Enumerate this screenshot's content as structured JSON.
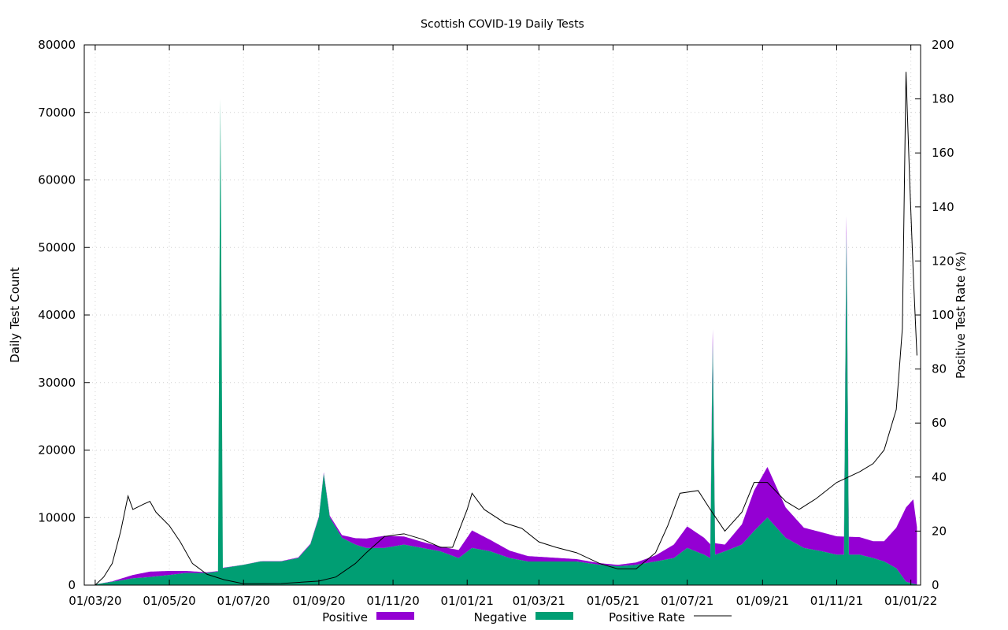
{
  "chart_data": {
    "type": "area",
    "title": "Scottish COVID-19 Daily Tests",
    "ylabel": "Daily Test Count",
    "y2label": "Positive Test Rate (%)",
    "xlabel": "",
    "x_ticks": [
      "01/03/20",
      "01/05/20",
      "01/07/20",
      "01/09/20",
      "01/11/20",
      "01/01/21",
      "01/03/21",
      "01/05/21",
      "01/07/21",
      "01/09/21",
      "01/11/21",
      "01/01/22"
    ],
    "x_range": [
      "2020-02-21",
      "2022-01-09"
    ],
    "ylim": [
      0,
      80000
    ],
    "y_ticks": [
      0,
      10000,
      20000,
      30000,
      40000,
      50000,
      60000,
      70000,
      80000
    ],
    "y2lim": [
      0,
      200
    ],
    "y2_ticks": [
      0,
      20,
      40,
      60,
      80,
      100,
      120,
      140,
      160,
      180,
      200
    ],
    "grid": true,
    "legend_position": "bottom",
    "colors": {
      "positive": "#9400d3",
      "negative": "#009e73",
      "rate": "#000000"
    },
    "series": [
      {
        "name": "Positive",
        "style": "stacked-area",
        "points": [
          [
            "2020-03-01",
            0
          ],
          [
            "2020-03-15",
            60
          ],
          [
            "2020-04-01",
            500
          ],
          [
            "2020-04-15",
            800
          ],
          [
            "2020-05-01",
            600
          ],
          [
            "2020-05-15",
            300
          ],
          [
            "2020-06-01",
            100
          ],
          [
            "2020-07-01",
            20
          ],
          [
            "2020-08-01",
            50
          ],
          [
            "2020-09-01",
            150
          ],
          [
            "2020-09-20",
            400
          ],
          [
            "2020-10-10",
            1400
          ],
          [
            "2020-10-25",
            1800
          ],
          [
            "2020-11-10",
            1200
          ],
          [
            "2020-11-25",
            900
          ],
          [
            "2020-12-10",
            700
          ],
          [
            "2020-12-25",
            1200
          ],
          [
            "2021-01-05",
            2600
          ],
          [
            "2021-01-20",
            1700
          ],
          [
            "2021-02-05",
            1100
          ],
          [
            "2021-02-20",
            800
          ],
          [
            "2021-03-10",
            600
          ],
          [
            "2021-04-01",
            350
          ],
          [
            "2021-04-20",
            250
          ],
          [
            "2021-05-05",
            200
          ],
          [
            "2021-05-20",
            350
          ],
          [
            "2021-06-05",
            900
          ],
          [
            "2021-06-20",
            2000
          ],
          [
            "2021-07-01",
            3200
          ],
          [
            "2021-07-15",
            2500
          ],
          [
            "2021-08-01",
            1000
          ],
          [
            "2021-08-15",
            3000
          ],
          [
            "2021-08-25",
            6000
          ],
          [
            "2021-09-05",
            7500
          ],
          [
            "2021-09-20",
            4500
          ],
          [
            "2021-10-05",
            3000
          ],
          [
            "2021-10-20",
            2800
          ],
          [
            "2021-11-05",
            2700
          ],
          [
            "2021-11-20",
            2600
          ],
          [
            "2021-12-01",
            2500
          ],
          [
            "2021-12-10",
            3000
          ],
          [
            "2021-12-20",
            6000
          ],
          [
            "2021-12-28",
            11000
          ],
          [
            "2022-01-03",
            12500
          ],
          [
            "2022-01-06",
            8500
          ]
        ]
      },
      {
        "name": "Negative",
        "style": "stacked-area",
        "points": [
          [
            "2020-03-01",
            100
          ],
          [
            "2020-03-15",
            500
          ],
          [
            "2020-04-01",
            1000
          ],
          [
            "2020-04-15",
            1200
          ],
          [
            "2020-05-01",
            1500
          ],
          [
            "2020-05-15",
            1800
          ],
          [
            "2020-06-01",
            1800
          ],
          [
            "2020-06-10",
            2000
          ],
          [
            "2020-06-12",
            72000
          ],
          [
            "2020-06-14",
            2500
          ],
          [
            "2020-07-01",
            3000
          ],
          [
            "2020-07-15",
            3500
          ],
          [
            "2020-08-01",
            3500
          ],
          [
            "2020-08-15",
            4000
          ],
          [
            "2020-08-25",
            6000
          ],
          [
            "2020-09-01",
            10000
          ],
          [
            "2020-09-05",
            16500
          ],
          [
            "2020-09-10",
            10000
          ],
          [
            "2020-09-20",
            7000
          ],
          [
            "2020-10-01",
            6000
          ],
          [
            "2020-10-10",
            5500
          ],
          [
            "2020-10-25",
            5500
          ],
          [
            "2020-11-10",
            6000
          ],
          [
            "2020-11-25",
            5500
          ],
          [
            "2020-12-10",
            5000
          ],
          [
            "2020-12-25",
            4000
          ],
          [
            "2021-01-05",
            5500
          ],
          [
            "2021-01-20",
            5000
          ],
          [
            "2021-02-05",
            4000
          ],
          [
            "2021-02-20",
            3500
          ],
          [
            "2021-03-10",
            3500
          ],
          [
            "2021-04-01",
            3500
          ],
          [
            "2021-04-20",
            3000
          ],
          [
            "2021-05-05",
            2800
          ],
          [
            "2021-05-20",
            3000
          ],
          [
            "2021-06-05",
            3500
          ],
          [
            "2021-06-20",
            4000
          ],
          [
            "2021-07-01",
            5500
          ],
          [
            "2021-07-15",
            4500
          ],
          [
            "2021-07-20",
            4000
          ],
          [
            "2021-07-22",
            36000
          ],
          [
            "2021-07-24",
            4500
          ],
          [
            "2021-08-01",
            5000
          ],
          [
            "2021-08-15",
            6000
          ],
          [
            "2021-08-25",
            8000
          ],
          [
            "2021-09-05",
            10000
          ],
          [
            "2021-09-20",
            7000
          ],
          [
            "2021-10-05",
            5500
          ],
          [
            "2021-10-20",
            5000
          ],
          [
            "2021-11-01",
            4500
          ],
          [
            "2021-11-07",
            4500
          ],
          [
            "2021-11-09",
            52000
          ],
          [
            "2021-11-11",
            4500
          ],
          [
            "2021-11-20",
            4500
          ],
          [
            "2021-12-01",
            4000
          ],
          [
            "2021-12-10",
            3500
          ],
          [
            "2021-12-20",
            2500
          ],
          [
            "2021-12-28",
            500
          ],
          [
            "2022-01-03",
            200
          ],
          [
            "2022-01-06",
            100
          ]
        ]
      },
      {
        "name": "Positive Rate",
        "style": "line",
        "axis": "y2",
        "points": [
          [
            "2020-03-01",
            0
          ],
          [
            "2020-03-08",
            3
          ],
          [
            "2020-03-15",
            8
          ],
          [
            "2020-03-22",
            20
          ],
          [
            "2020-03-28",
            33
          ],
          [
            "2020-04-01",
            28
          ],
          [
            "2020-04-10",
            30
          ],
          [
            "2020-04-15",
            31
          ],
          [
            "2020-04-20",
            27
          ],
          [
            "2020-05-01",
            22
          ],
          [
            "2020-05-10",
            16
          ],
          [
            "2020-05-20",
            8
          ],
          [
            "2020-06-01",
            4
          ],
          [
            "2020-06-15",
            2
          ],
          [
            "2020-07-01",
            0.5
          ],
          [
            "2020-08-01",
            0.6
          ],
          [
            "2020-09-01",
            1.5
          ],
          [
            "2020-09-15",
            3
          ],
          [
            "2020-10-01",
            8
          ],
          [
            "2020-10-10",
            12
          ],
          [
            "2020-10-25",
            18
          ],
          [
            "2020-11-10",
            19
          ],
          [
            "2020-11-25",
            17
          ],
          [
            "2020-12-10",
            14
          ],
          [
            "2020-12-20",
            14
          ],
          [
            "2021-01-01",
            28
          ],
          [
            "2021-01-05",
            34
          ],
          [
            "2021-01-15",
            28
          ],
          [
            "2021-02-01",
            23
          ],
          [
            "2021-02-15",
            21
          ],
          [
            "2021-03-01",
            16
          ],
          [
            "2021-03-15",
            14
          ],
          [
            "2021-04-01",
            12
          ],
          [
            "2021-04-20",
            8
          ],
          [
            "2021-05-05",
            6
          ],
          [
            "2021-05-20",
            6
          ],
          [
            "2021-06-05",
            12
          ],
          [
            "2021-06-15",
            22
          ],
          [
            "2021-06-25",
            34
          ],
          [
            "2021-07-10",
            35
          ],
          [
            "2021-07-20",
            28
          ],
          [
            "2021-08-01",
            20
          ],
          [
            "2021-08-15",
            27
          ],
          [
            "2021-08-25",
            38
          ],
          [
            "2021-09-05",
            38
          ],
          [
            "2021-09-20",
            31
          ],
          [
            "2021-10-01",
            28
          ],
          [
            "2021-10-15",
            32
          ],
          [
            "2021-11-01",
            38
          ],
          [
            "2021-11-20",
            42
          ],
          [
            "2021-12-01",
            45
          ],
          [
            "2021-12-10",
            50
          ],
          [
            "2021-12-20",
            65
          ],
          [
            "2021-12-25",
            95
          ],
          [
            "2021-12-28",
            190
          ],
          [
            "2021-12-31",
            150
          ],
          [
            "2022-01-03",
            115
          ],
          [
            "2022-01-06",
            85
          ]
        ]
      }
    ]
  }
}
